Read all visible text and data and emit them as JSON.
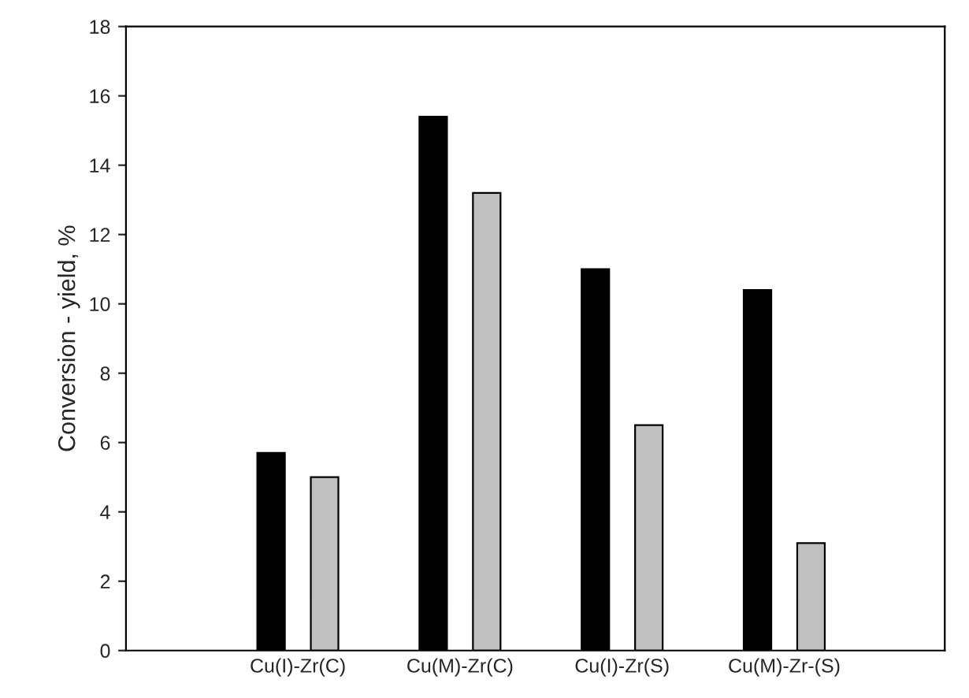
{
  "chart_data": {
    "type": "bar",
    "ylabel": "Conversion - yield, %",
    "categories": [
      "Cu(I)-Zr(C)",
      "Cu(M)-Zr(C)",
      "Cu(I)-Zr(S)",
      "Cu(M)-Zr-(S)"
    ],
    "series": [
      {
        "color": "#000000",
        "values": [
          5.7,
          15.4,
          11.0,
          10.4
        ]
      },
      {
        "color": "#c0c0c0",
        "values": [
          5.0,
          13.2,
          6.5,
          3.1
        ]
      }
    ],
    "ylim": [
      0,
      18
    ],
    "yticks": [
      0,
      2,
      4,
      6,
      8,
      10,
      12,
      14,
      16,
      18
    ],
    "grid": false,
    "legend": false
  }
}
